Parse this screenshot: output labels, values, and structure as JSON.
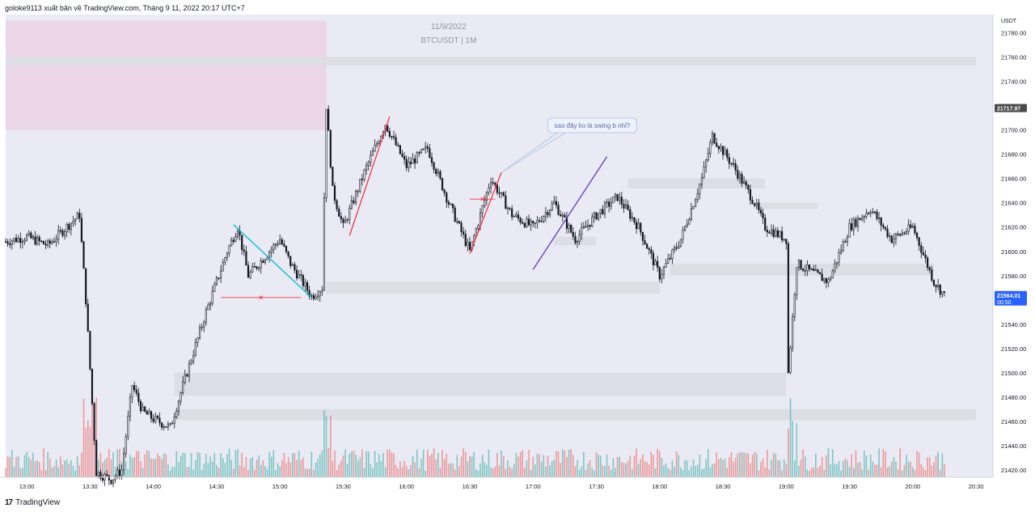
{
  "header": {
    "text": "goloke9113 xuất bản về TradingView.com, Tháng 9 11, 2022 20:17 UTC+7"
  },
  "footer": {
    "brand": "TradingView",
    "logo_text": "17"
  },
  "watermark": {
    "date": "11/9/2022",
    "symbol": "BTCUSDT | 1M"
  },
  "annotation": {
    "text": "sao đây ko là swing b nhỉ?"
  },
  "colors": {
    "background": "#e9eaf3",
    "up": "#131722",
    "down": "#131722",
    "volume_up": "#26a69a",
    "volume_down": "#ef5350",
    "supply_zone": "#ead6e7",
    "liquidity_zone": "#dcdde5",
    "cyan_line": "#00bcd4",
    "red_line": "#f23645",
    "purple_line": "#673ab7",
    "price_tag": "#2962ff",
    "last_tag": "#4a4a4a"
  },
  "chart_data": {
    "type": "candlestick",
    "symbol": "BTCUSDT",
    "interval": "1M",
    "currency_label": "USDT",
    "y_ticks": [
      "21780.00",
      "21760.00",
      "21740.00",
      "21720.00",
      "21700.00",
      "21680.00",
      "21660.00",
      "21640.00",
      "21620.00",
      "21600.00",
      "21580.00",
      "21560.00",
      "21540.00",
      "21520.00",
      "21500.00",
      "21480.00",
      "21460.00",
      "21440.00",
      "21420.00"
    ],
    "ylim": [
      21414,
      21795
    ],
    "x_ticks": [
      "13:00",
      "13:30",
      "14:00",
      "14:30",
      "15:00",
      "15:30",
      "16:00",
      "16:30",
      "17:00",
      "17:30",
      "18:00",
      "18:30",
      "19:00",
      "19:30",
      "20:00",
      "20:30"
    ],
    "price_labels": [
      {
        "value": "21717.97",
        "time": "",
        "kind": "last"
      },
      {
        "value": "21564.01",
        "time": "00:50",
        "kind": "current"
      }
    ],
    "approx_path": [
      {
        "t": "12:50",
        "p": 21608
      },
      {
        "t": "13:00",
        "p": 21612
      },
      {
        "t": "13:10",
        "p": 21605
      },
      {
        "t": "13:20",
        "p": 21622
      },
      {
        "t": "13:25",
        "p": 21630
      },
      {
        "t": "13:28",
        "p": 21560
      },
      {
        "t": "13:33",
        "p": 21418
      },
      {
        "t": "13:40",
        "p": 21412
      },
      {
        "t": "13:45",
        "p": 21420
      },
      {
        "t": "13:50",
        "p": 21490
      },
      {
        "t": "13:55",
        "p": 21468
      },
      {
        "t": "14:00",
        "p": 21462
      },
      {
        "t": "14:08",
        "p": 21455
      },
      {
        "t": "14:15",
        "p": 21495
      },
      {
        "t": "14:25",
        "p": 21550
      },
      {
        "t": "14:35",
        "p": 21600
      },
      {
        "t": "14:40",
        "p": 21620
      },
      {
        "t": "14:45",
        "p": 21580
      },
      {
        "t": "14:55",
        "p": 21600
      },
      {
        "t": "15:00",
        "p": 21610
      },
      {
        "t": "15:05",
        "p": 21590
      },
      {
        "t": "15:15",
        "p": 21563
      },
      {
        "t": "15:20",
        "p": 21570
      },
      {
        "t": "15:22",
        "p": 21720
      },
      {
        "t": "15:25",
        "p": 21650
      },
      {
        "t": "15:30",
        "p": 21620
      },
      {
        "t": "15:40",
        "p": 21665
      },
      {
        "t": "15:50",
        "p": 21705
      },
      {
        "t": "16:00",
        "p": 21670
      },
      {
        "t": "16:10",
        "p": 21685
      },
      {
        "t": "16:20",
        "p": 21640
      },
      {
        "t": "16:30",
        "p": 21600
      },
      {
        "t": "16:40",
        "p": 21660
      },
      {
        "t": "16:50",
        "p": 21630
      },
      {
        "t": "17:00",
        "p": 21620
      },
      {
        "t": "17:10",
        "p": 21640
      },
      {
        "t": "17:20",
        "p": 21610
      },
      {
        "t": "17:30",
        "p": 21630
      },
      {
        "t": "17:40",
        "p": 21645
      },
      {
        "t": "17:50",
        "p": 21620
      },
      {
        "t": "18:00",
        "p": 21580
      },
      {
        "t": "18:10",
        "p": 21610
      },
      {
        "t": "18:20",
        "p": 21660
      },
      {
        "t": "18:25",
        "p": 21695
      },
      {
        "t": "18:35",
        "p": 21670
      },
      {
        "t": "18:45",
        "p": 21640
      },
      {
        "t": "18:50",
        "p": 21620
      },
      {
        "t": "19:00",
        "p": 21610
      },
      {
        "t": "19:01",
        "p": 21500
      },
      {
        "t": "19:05",
        "p": 21590
      },
      {
        "t": "19:10",
        "p": 21585
      },
      {
        "t": "19:20",
        "p": 21575
      },
      {
        "t": "19:30",
        "p": 21620
      },
      {
        "t": "19:40",
        "p": 21635
      },
      {
        "t": "19:50",
        "p": 21610
      },
      {
        "t": "20:00",
        "p": 21620
      },
      {
        "t": "20:10",
        "p": 21575
      },
      {
        "t": "20:15",
        "p": 21564
      }
    ],
    "zones": [
      {
        "kind": "supply",
        "from": "12:50",
        "to": "15:22",
        "p_top": 21790,
        "p_bot": 21700
      },
      {
        "kind": "liquidity",
        "from": "12:50",
        "to": "20:30",
        "p_top": 21760,
        "p_bot": 21753
      },
      {
        "kind": "liquidity",
        "from": "15:22",
        "to": "18:00",
        "p_top": 21575,
        "p_bot": 21565
      },
      {
        "kind": "liquidity",
        "from": "14:10",
        "to": "19:00",
        "p_top": 21500,
        "p_bot": 21481
      },
      {
        "kind": "liquidity",
        "from": "14:10",
        "to": "20:30",
        "p_top": 21470,
        "p_bot": 21461
      },
      {
        "kind": "liquidity",
        "from": "17:45",
        "to": "18:50",
        "p_top": 21660,
        "p_bot": 21652
      },
      {
        "kind": "liquidity",
        "from": "18:05",
        "to": "20:10",
        "p_top": 21590,
        "p_bot": 21580
      },
      {
        "kind": "liquidity",
        "from": "18:45",
        "to": "19:15",
        "p_top": 21640,
        "p_bot": 21635
      },
      {
        "kind": "liquidity",
        "from": "17:10",
        "to": "17:30",
        "p_top": 21612,
        "p_bot": 21605
      }
    ],
    "lines": [
      {
        "color": "cyan",
        "from": {
          "t": "14:38",
          "p": 21622
        },
        "to": {
          "t": "15:15",
          "p": 21562
        }
      },
      {
        "color": "red",
        "from": {
          "t": "15:33",
          "p": 21613
        },
        "to": {
          "t": "15:52",
          "p": 21711
        }
      },
      {
        "color": "red",
        "from": {
          "t": "16:30",
          "p": 21598
        },
        "to": {
          "t": "16:45",
          "p": 21665
        }
      },
      {
        "color": "purple",
        "from": {
          "t": "17:00",
          "p": 21585
        },
        "to": {
          "t": "17:35",
          "p": 21678
        }
      }
    ],
    "swing_marks": [
      {
        "color": "red",
        "from": {
          "t": "14:32",
          "p": 21562
        },
        "to": {
          "t": "15:10",
          "p": 21562
        }
      },
      {
        "color": "red",
        "from": {
          "t": "16:30",
          "p": 21643
        },
        "to": {
          "t": "16:42",
          "p": 21643
        }
      }
    ]
  }
}
